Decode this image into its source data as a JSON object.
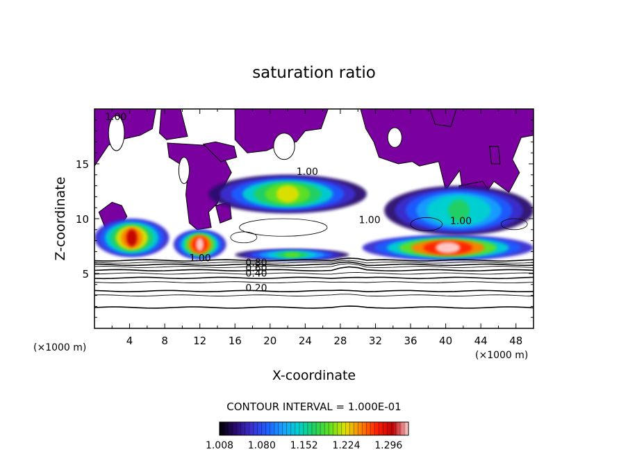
{
  "chart_data": {
    "type": "heatmap",
    "title": "saturation ratio",
    "xlabel": "X-coordinate",
    "ylabel": "Z-coordinate",
    "x_unit_left": "(×1000 m)",
    "x_unit_right": "(×1000 m)",
    "xlim": [
      0,
      50
    ],
    "ylim": [
      0,
      20
    ],
    "x_ticks": [
      4,
      8,
      12,
      16,
      20,
      24,
      28,
      32,
      36,
      40,
      44,
      48
    ],
    "y_ticks": [
      5,
      10,
      15
    ],
    "contour_interval_text": "CONTOUR INTERVAL = 1.000E-01",
    "contour_labels": [
      {
        "text": "0.20",
        "x": 17.2,
        "z": 3.4
      },
      {
        "text": "0.40",
        "x": 17.2,
        "z": 4.7
      },
      {
        "text": "0.60",
        "x": 17.2,
        "z": 5.2
      },
      {
        "text": "0.80",
        "x": 17.2,
        "z": 5.7
      },
      {
        "text": "1.00",
        "x": 10.8,
        "z": 6.1
      },
      {
        "text": "1.00",
        "x": 30.1,
        "z": 9.6
      },
      {
        "text": "1.00",
        "x": 1.2,
        "z": 19.0
      },
      {
        "text": "1.00",
        "x": 23.0,
        "z": 14.0
      },
      {
        "text": "1.00",
        "x": 40.5,
        "z": 9.5
      }
    ],
    "colorbar": {
      "ticks": [
        "1.008",
        "1.080",
        "1.152",
        "1.224",
        "1.296"
      ],
      "min": 1.008,
      "max": 1.33,
      "colors": [
        "#000000",
        "#2a0a6e",
        "#3b2fd0",
        "#1f5cff",
        "#18a0ff",
        "#00d0d0",
        "#20d060",
        "#60e020",
        "#e0e000",
        "#ff8000",
        "#ff2000",
        "#c00000",
        "#ffd0d0"
      ]
    },
    "regions_subsaturated_purple": "#7a00a0",
    "cloud_bands": [
      {
        "x": [
          0,
          8.5
        ],
        "z": [
          6.5,
          10
        ],
        "peak": 1.3
      },
      {
        "x": [
          9,
          15
        ],
        "z": [
          6.3,
          9
        ],
        "peak": 1.33
      },
      {
        "x": [
          16,
          29
        ],
        "z": [
          6.2,
          7.2
        ],
        "peak": 1.2
      },
      {
        "x": [
          13,
          31
        ],
        "z": [
          10.5,
          14
        ],
        "peak": 1.22
      },
      {
        "x": [
          30.5,
          50
        ],
        "z": [
          6.2,
          8.5
        ],
        "peak": 1.33
      },
      {
        "x": [
          33,
          50
        ],
        "z": [
          8.5,
          13
        ],
        "peak": 1.18
      }
    ]
  }
}
